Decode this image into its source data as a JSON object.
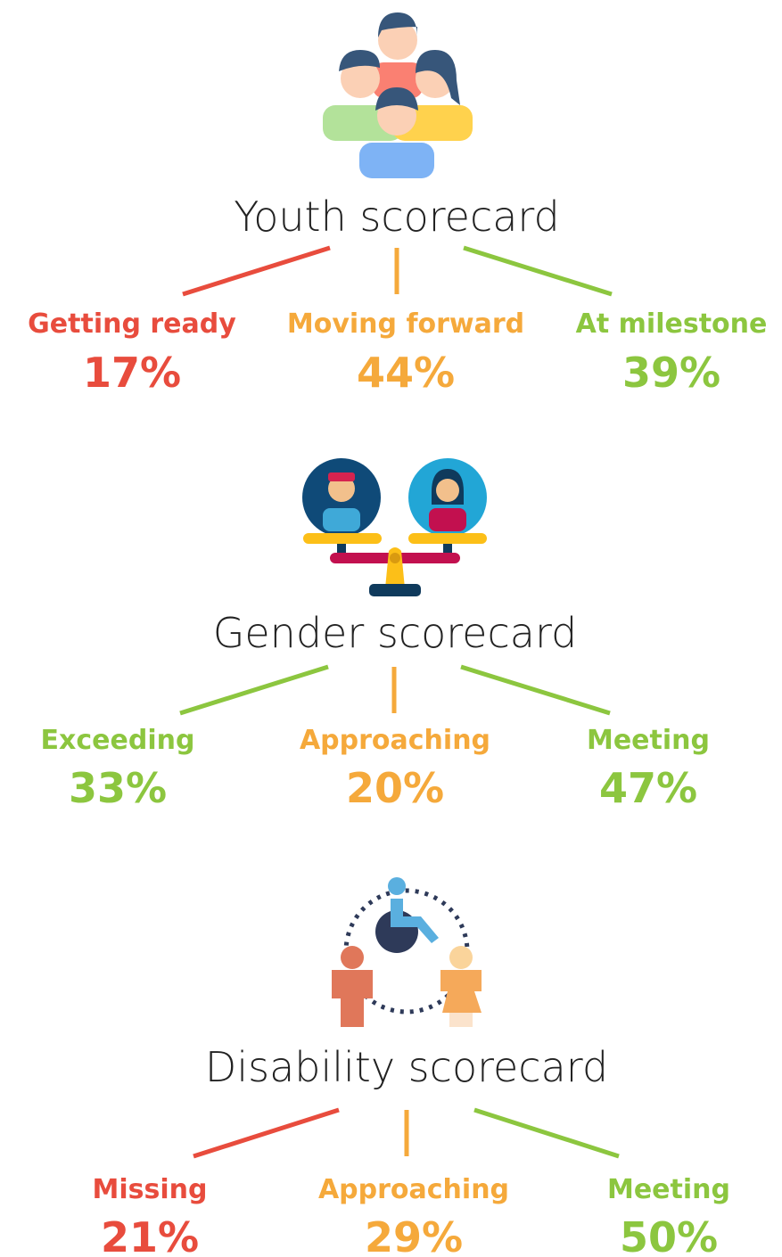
{
  "scorecards": [
    {
      "title": "Youth scorecard",
      "items": [
        {
          "label": "Getting ready",
          "value": "17%",
          "color": "#e84c3d"
        },
        {
          "label": "Moving forward",
          "value": "44%",
          "color": "#f5a93b"
        },
        {
          "label": "At milestone",
          "value": "39%",
          "color": "#8cc63f"
        }
      ]
    },
    {
      "title": "Gender scorecard",
      "items": [
        {
          "label": "Exceeding",
          "value": "33%",
          "color": "#8cc63f"
        },
        {
          "label": "Approaching",
          "value": "20%",
          "color": "#f5a93b"
        },
        {
          "label": "Meeting",
          "value": "47%",
          "color": "#8cc63f"
        }
      ]
    },
    {
      "title": "Disability scorecard",
      "items": [
        {
          "label": "Missing",
          "value": "21%",
          "color": "#e84c3d"
        },
        {
          "label": "Approaching",
          "value": "29%",
          "color": "#f5a93b"
        },
        {
          "label": "Meeting",
          "value": "50%",
          "color": "#8cc63f"
        }
      ]
    }
  ]
}
